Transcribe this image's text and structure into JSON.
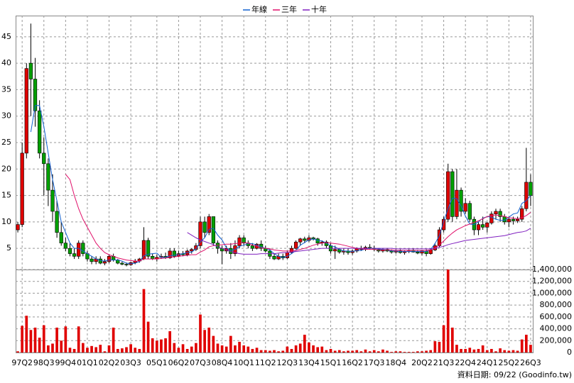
{
  "chart_data": {
    "type": "candlestick",
    "categories": [
      null,
      "97Q2",
      null,
      null,
      null,
      null,
      "98Q3",
      null,
      null,
      null,
      null,
      "99Q4",
      null,
      null,
      null,
      null,
      "01Q1",
      null,
      null,
      null,
      null,
      "02Q2",
      null,
      null,
      null,
      null,
      "03Q3",
      null,
      null,
      null,
      null,
      null,
      "05Q1",
      null,
      null,
      null,
      null,
      "06Q2",
      null,
      null,
      null,
      null,
      "07Q3",
      null,
      null,
      null,
      null,
      "08Q4",
      null,
      null,
      null,
      null,
      "10Q1",
      null,
      null,
      null,
      null,
      "11Q2",
      null,
      null,
      null,
      null,
      "12Q3",
      null,
      null,
      null,
      null,
      "13Q4",
      null,
      null,
      null,
      null,
      "15Q1",
      null,
      null,
      null,
      null,
      "16Q2",
      null,
      null,
      null,
      null,
      "17Q3",
      null,
      null,
      null,
      null,
      "18Q4",
      null,
      null,
      null,
      null,
      null,
      "20Q2",
      null,
      null,
      null,
      null,
      "21Q3",
      null,
      null,
      null,
      null,
      "22Q4",
      null,
      null,
      null,
      null,
      "24Q1",
      null,
      null,
      null,
      null,
      "25Q2",
      null,
      null,
      null,
      null,
      "26Q3"
    ],
    "ohlc": [
      [
        8.5,
        10,
        8,
        9.5
      ],
      [
        9.5,
        25,
        9,
        23
      ],
      [
        23,
        40,
        22,
        39
      ],
      [
        40,
        47.5,
        30,
        37
      ],
      [
        37,
        41,
        28,
        31
      ],
      [
        31,
        33,
        22,
        23
      ],
      [
        23,
        26,
        15,
        21
      ],
      [
        21,
        22,
        13,
        16
      ],
      [
        16,
        19,
        10,
        12
      ],
      [
        12,
        14,
        7,
        8
      ],
      [
        8,
        10,
        5.5,
        6
      ],
      [
        6,
        7,
        4.5,
        5
      ],
      [
        5,
        6,
        3.5,
        4
      ],
      [
        4,
        5,
        3,
        3.5
      ],
      [
        3.5,
        6.5,
        3,
        6
      ],
      [
        6,
        6.5,
        3.5,
        4
      ],
      [
        4,
        4.5,
        2.5,
        3
      ],
      [
        3,
        3.5,
        2,
        2.5
      ],
      [
        2.5,
        3.5,
        2,
        3
      ],
      [
        3,
        3.5,
        2,
        2.2
      ],
      [
        2.2,
        3,
        1.8,
        2.5
      ],
      [
        2.5,
        3.8,
        2.2,
        3.5
      ],
      [
        3.5,
        4,
        2.5,
        2.8
      ],
      [
        2.8,
        3,
        2,
        2.2
      ],
      [
        2.2,
        2.5,
        1.8,
        2
      ],
      [
        2,
        2.3,
        1.6,
        1.9
      ],
      [
        1.9,
        2.5,
        1.7,
        2.3
      ],
      [
        2.3,
        3,
        2,
        2.6
      ],
      [
        2.6,
        3.2,
        2.3,
        3
      ],
      [
        3,
        9,
        2.8,
        6.5
      ],
      [
        6.5,
        7,
        3,
        3.5
      ],
      [
        3.5,
        4,
        2.8,
        3
      ],
      [
        3,
        3.8,
        2.5,
        3.3
      ],
      [
        3.3,
        4,
        3,
        3.5
      ],
      [
        3.5,
        4.2,
        3,
        3.2
      ],
      [
        3.2,
        5,
        3,
        4.5
      ],
      [
        4.5,
        5,
        3.2,
        3.5
      ],
      [
        3.5,
        4.5,
        3.3,
        4
      ],
      [
        4,
        4.5,
        3.5,
        3.8
      ],
      [
        3.8,
        4.8,
        3.5,
        4.5
      ],
      [
        4.5,
        5,
        4,
        4.8
      ],
      [
        4.8,
        6,
        4.5,
        5.5
      ],
      [
        5.5,
        11,
        5,
        10
      ],
      [
        10,
        11,
        7,
        8
      ],
      [
        8,
        11.5,
        7.5,
        11
      ],
      [
        11,
        11,
        5.5,
        6
      ],
      [
        6,
        6.5,
        4,
        5
      ],
      [
        5,
        5.5,
        2,
        4.5
      ],
      [
        4.5,
        5.5,
        4,
        5
      ],
      [
        5,
        6,
        3,
        4
      ],
      [
        4,
        6.5,
        3.5,
        5.5
      ],
      [
        5.5,
        7.5,
        5,
        7
      ],
      [
        7,
        7.5,
        5.5,
        6
      ],
      [
        6,
        6.5,
        5,
        5.5
      ],
      [
        5.5,
        6,
        4.5,
        5
      ],
      [
        5,
        6,
        4.8,
        5.8
      ],
      [
        5.8,
        6.5,
        4.5,
        5
      ],
      [
        5,
        5.5,
        4.2,
        4.5
      ],
      [
        4.5,
        5,
        3,
        3.5
      ],
      [
        3.5,
        4,
        2.8,
        3
      ],
      [
        3,
        4,
        2.8,
        3.5
      ],
      [
        3.5,
        4,
        2.8,
        3.2
      ],
      [
        3.2,
        4.5,
        3,
        4.2
      ],
      [
        4.2,
        5.5,
        4,
        5
      ],
      [
        5,
        6.5,
        4.8,
        6.2
      ],
      [
        6.2,
        7,
        5.5,
        6.8
      ],
      [
        6.8,
        7.2,
        6,
        6.5
      ],
      [
        6.5,
        7.5,
        6.2,
        7
      ],
      [
        7,
        7.2,
        6.5,
        6.8
      ],
      [
        6.8,
        7,
        5.5,
        6
      ],
      [
        6,
        6.5,
        5.5,
        6.2
      ],
      [
        6.2,
        6.5,
        5,
        5.5
      ],
      [
        5.5,
        6,
        4,
        4.5
      ],
      [
        4.5,
        5.5,
        3,
        4.8
      ],
      [
        4.8,
        5,
        4,
        4.3
      ],
      [
        4.3,
        5,
        3.8,
        4.5
      ],
      [
        4.5,
        5,
        3.8,
        4.2
      ],
      [
        4.2,
        4.8,
        3.8,
        4.5
      ],
      [
        4.5,
        5.2,
        4.2,
        5
      ],
      [
        5,
        5.5,
        4.5,
        4.8
      ],
      [
        4.8,
        5.5,
        4.5,
        5.2
      ],
      [
        5.2,
        5.8,
        4.8,
        5
      ],
      [
        5,
        5.5,
        4.5,
        4.8
      ],
      [
        4.8,
        5,
        4.2,
        4.5
      ],
      [
        4.5,
        5,
        4.2,
        4.8
      ],
      [
        4.8,
        5,
        4.3,
        4.5
      ],
      [
        4.5,
        4.8,
        4,
        4.3
      ],
      [
        4.3,
        4.8,
        4,
        4.5
      ],
      [
        4.5,
        4.8,
        4,
        4.2
      ],
      [
        4.2,
        4.6,
        3.8,
        4.4
      ],
      [
        4.4,
        4.8,
        4.1,
        4.6
      ],
      [
        4.6,
        5,
        4.2,
        4.3
      ],
      [
        4.3,
        4.7,
        3.9,
        4.1
      ],
      [
        4.1,
        4.6,
        3.7,
        4.5
      ],
      [
        4.4,
        4.8,
        3.5,
        4
      ],
      [
        4,
        5,
        3.8,
        4.7
      ],
      [
        4.7,
        6,
        4.5,
        5.5
      ],
      [
        5.5,
        9,
        5.2,
        8.5
      ],
      [
        8.5,
        11,
        8,
        10.5
      ],
      [
        10.5,
        21,
        10,
        19.5
      ],
      [
        19.5,
        20,
        10,
        11
      ],
      [
        11,
        20,
        10.5,
        16
      ],
      [
        16,
        16.5,
        11,
        12
      ],
      [
        12,
        14.5,
        11.5,
        13.5
      ],
      [
        13.5,
        14,
        10,
        10.5
      ],
      [
        10.5,
        11,
        7.5,
        8.5
      ],
      [
        8.5,
        10,
        7.5,
        9.5
      ],
      [
        9.5,
        11,
        8.5,
        9
      ],
      [
        9,
        10,
        8,
        9.8
      ],
      [
        9.8,
        12,
        9.5,
        11.5
      ],
      [
        11.5,
        12.5,
        10.5,
        12
      ],
      [
        12,
        12.5,
        10,
        11
      ],
      [
        11,
        11.5,
        9.5,
        10
      ],
      [
        10,
        11,
        9,
        10.5
      ],
      [
        10.5,
        11,
        9.5,
        10.2
      ],
      [
        10.2,
        11,
        9.8,
        10.5
      ],
      [
        10.5,
        13,
        10,
        12.5
      ],
      [
        12.5,
        24,
        12,
        17.5
      ],
      [
        17.5,
        19,
        13,
        15
      ]
    ],
    "up_color": "#e00000",
    "down_color": "#00a000",
    "ylim": [
      1,
      49
    ],
    "yticks": [
      5,
      10,
      15,
      20,
      25,
      30,
      35,
      40,
      45
    ],
    "grid": true,
    "series": [
      {
        "name": "年線",
        "color": "#1060d0",
        "values": [
          null,
          null,
          null,
          27,
          32,
          32,
          28,
          23,
          18,
          14,
          10,
          8,
          6,
          5,
          5,
          4.5,
          4,
          3.5,
          3,
          2.7,
          2.6,
          2.8,
          2.8,
          2.8,
          2.6,
          2.2,
          2.1,
          2.2,
          2.5,
          3.6,
          3.9,
          4,
          4.1,
          3.3,
          3.3,
          3.6,
          3.7,
          3.8,
          4,
          4.2,
          4.3,
          4.9,
          6.2,
          7,
          8.6,
          8.8,
          7.5,
          6.6,
          5.1,
          4.6,
          4.8,
          5.4,
          5.6,
          5.9,
          5.9,
          5.6,
          5.3,
          5,
          4.7,
          4,
          3.5,
          3.3,
          3.5,
          4,
          4.6,
          5.6,
          6.1,
          6.6,
          6.8,
          6.5,
          6.4,
          6,
          5.5,
          5.3,
          4.8,
          4.5,
          4.5,
          4.4,
          4.6,
          4.6,
          4.9,
          5,
          5,
          4.9,
          4.8,
          4.7,
          4.5,
          4.5,
          4.4,
          4.4,
          4.4,
          4.4,
          4.4,
          4.4,
          4.4,
          4.8,
          5.9,
          7.4,
          10.1,
          12.5,
          14.5,
          14.4,
          13,
          11.1,
          9.6,
          9.5,
          10,
          10.7,
          11,
          10.9,
          10.5,
          10.3,
          10.3,
          10.9,
          11.5,
          11.7,
          13.5,
          14,
          15
        ]
      },
      {
        "name": "三年",
        "color": "#e0106a",
        "values": [
          null,
          null,
          null,
          null,
          null,
          null,
          null,
          null,
          null,
          null,
          null,
          19,
          18,
          15,
          12.5,
          10.5,
          9,
          7.5,
          6,
          5,
          4.2,
          3.8,
          3.5,
          3.2,
          3,
          2.8,
          2.7,
          2.6,
          2.6,
          3,
          3,
          3,
          3,
          3.1,
          3.2,
          3.3,
          3.4,
          3.5,
          3.6,
          3.7,
          3.8,
          3.8,
          4.3,
          4.7,
          5.3,
          5.5,
          5.6,
          5.7,
          5.8,
          5.8,
          5.9,
          6,
          6.1,
          6,
          5.6,
          5.4,
          5.1,
          5,
          4.9,
          4.7,
          4.6,
          4.5,
          4.5,
          4.5,
          4.6,
          4.8,
          5,
          5.3,
          5.6,
          5.8,
          6,
          6.1,
          6,
          5.9,
          5.8,
          5.6,
          5.4,
          5.2,
          5,
          4.9,
          4.8,
          4.8,
          4.8,
          4.7,
          4.7,
          4.7,
          4.7,
          4.6,
          4.6,
          4.6,
          4.6,
          4.6,
          4.6,
          4.6,
          4.6,
          4.7,
          5.1,
          5.6,
          6.4,
          7.2,
          7.9,
          8.5,
          8.9,
          9.3,
          9.6,
          9.9,
          10.2,
          10.6,
          11,
          11.2,
          11.3,
          11.2,
          11,
          10.8,
          10.7,
          10.6,
          10.8,
          11.2,
          11.8
        ]
      },
      {
        "name": "十年",
        "color": "#8020c0",
        "values": [
          null,
          null,
          null,
          null,
          null,
          null,
          null,
          null,
          null,
          null,
          null,
          null,
          null,
          null,
          null,
          null,
          null,
          null,
          null,
          null,
          null,
          null,
          null,
          null,
          null,
          null,
          null,
          null,
          null,
          null,
          null,
          null,
          null,
          null,
          null,
          null,
          null,
          null,
          null,
          8,
          7.5,
          7,
          6.6,
          6.3,
          6,
          5.7,
          5.3,
          5,
          4.7,
          4.4,
          4.2,
          4,
          3.9,
          3.9,
          3.9,
          3.9,
          4,
          4,
          4,
          4,
          4.1,
          4.2,
          4.2,
          4.3,
          4.4,
          4.5,
          4.6,
          4.7,
          4.8,
          4.9,
          5,
          5,
          5,
          5,
          5,
          5,
          5,
          5,
          5,
          5,
          5,
          5,
          5,
          5,
          5,
          5,
          5,
          4.9,
          4.9,
          4.9,
          4.9,
          4.9,
          4.9,
          4.9,
          4.9,
          4.9,
          5,
          5.2,
          5.4,
          5.7,
          5.9,
          6.1,
          6.3,
          6.5,
          6.6,
          6.7,
          6.8,
          6.9,
          7,
          7.1,
          7.2,
          7.3,
          7.4,
          7.6,
          7.8,
          8,
          8.1,
          8.3,
          8.8
        ]
      }
    ],
    "volume": {
      "type": "bar",
      "color": "#e00000",
      "values": [
        20000,
        450000,
        620000,
        380000,
        420000,
        250000,
        460000,
        120000,
        150000,
        420000,
        200000,
        440000,
        80000,
        60000,
        440000,
        160000,
        80000,
        110000,
        90000,
        130000,
        20000,
        120000,
        420000,
        60000,
        70000,
        90000,
        140000,
        80000,
        60000,
        1070000,
        520000,
        240000,
        200000,
        220000,
        240000,
        360000,
        160000,
        80000,
        140000,
        60000,
        100000,
        160000,
        640000,
        380000,
        420000,
        280000,
        150000,
        120000,
        100000,
        280000,
        120000,
        180000,
        120000,
        100000,
        60000,
        80000,
        40000,
        40000,
        30000,
        40000,
        20000,
        30000,
        100000,
        60000,
        120000,
        150000,
        300000,
        170000,
        120000,
        90000,
        100000,
        40000,
        60000,
        30000,
        40000,
        20000,
        30000,
        30000,
        40000,
        20000,
        50000,
        20000,
        40000,
        20000,
        50000,
        30000,
        10000,
        20000,
        20000,
        10000,
        10000,
        10000,
        20000,
        20000,
        30000,
        40000,
        190000,
        180000,
        460000,
        1400000,
        420000,
        130000,
        60000,
        60000,
        80000,
        50000,
        60000,
        120000,
        40000,
        60000,
        20000,
        70000,
        40000,
        30000,
        40000,
        30000,
        220000,
        300000,
        130000
      ],
      "ylim": [
        0,
        1400000
      ],
      "yticks": [
        0,
        {
          "value": 200000,
          "label": "200,000"
        },
        {
          "value": 400000,
          "label": "400,000"
        },
        {
          "value": 600000,
          "label": "600,000"
        },
        {
          "value": 800000,
          "label": "800,000"
        },
        {
          "value": 1000000,
          "label": "1,000,000"
        },
        {
          "value": 1200000,
          "label": "1,200,000"
        },
        {
          "value": 1400000,
          "label": "1,400,000"
        }
      ]
    },
    "note": "資料日期: 09/22  (Goodinfo.tw)"
  }
}
